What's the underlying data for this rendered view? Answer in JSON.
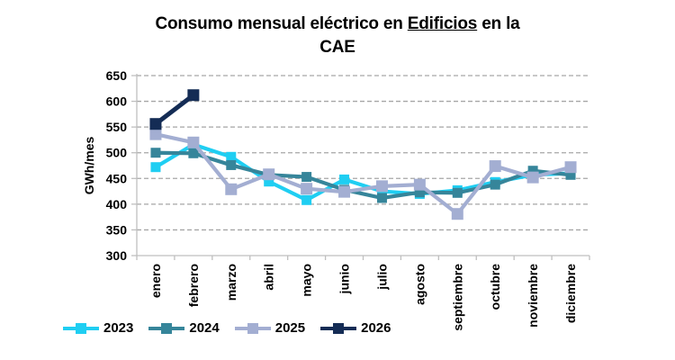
{
  "title": {
    "part1": "Consumo mensual eléctrico en ",
    "part2_underlined": "Edificios",
    "part3": " en la",
    "line2": "CAE"
  },
  "chart_data": {
    "type": "line",
    "title": "Consumo mensual eléctrico en Edificios en la CAE",
    "xlabel": "",
    "ylabel": "GWh/mes",
    "ylim": [
      300,
      650
    ],
    "yticks": [
      300,
      350,
      400,
      450,
      500,
      550,
      600,
      650
    ],
    "grid": "horizontal-dashed",
    "legend_position": "bottom-left",
    "categories": [
      "enero",
      "febrero",
      "marzo",
      "abril",
      "mayo",
      "junio",
      "julio",
      "agosto",
      "septiembre",
      "octubre",
      "noviembre",
      "diciembre"
    ],
    "series": [
      {
        "name": "2023",
        "color": "#1FCEF2",
        "values": [
          472,
          516,
          492,
          444,
          408,
          448,
          425,
          420,
          427,
          443,
          457,
          460
        ]
      },
      {
        "name": "2024",
        "color": "#36859A",
        "values": [
          500,
          499,
          476,
          457,
          453,
          428,
          412,
          423,
          422,
          438,
          465,
          457
        ]
      },
      {
        "name": "2025",
        "color": "#A3AED2",
        "values": [
          536,
          520,
          429,
          458,
          430,
          424,
          435,
          438,
          381,
          474,
          452,
          472
        ]
      },
      {
        "name": "2026",
        "color": "#142C55",
        "values": [
          556,
          612,
          null,
          null,
          null,
          null,
          null,
          null,
          null,
          null,
          null,
          null
        ]
      }
    ]
  },
  "colors": {
    "background": "#FFFFFF",
    "gridline": "#A6A6A6",
    "axis": "#BFBFBF",
    "text": "#000000"
  }
}
